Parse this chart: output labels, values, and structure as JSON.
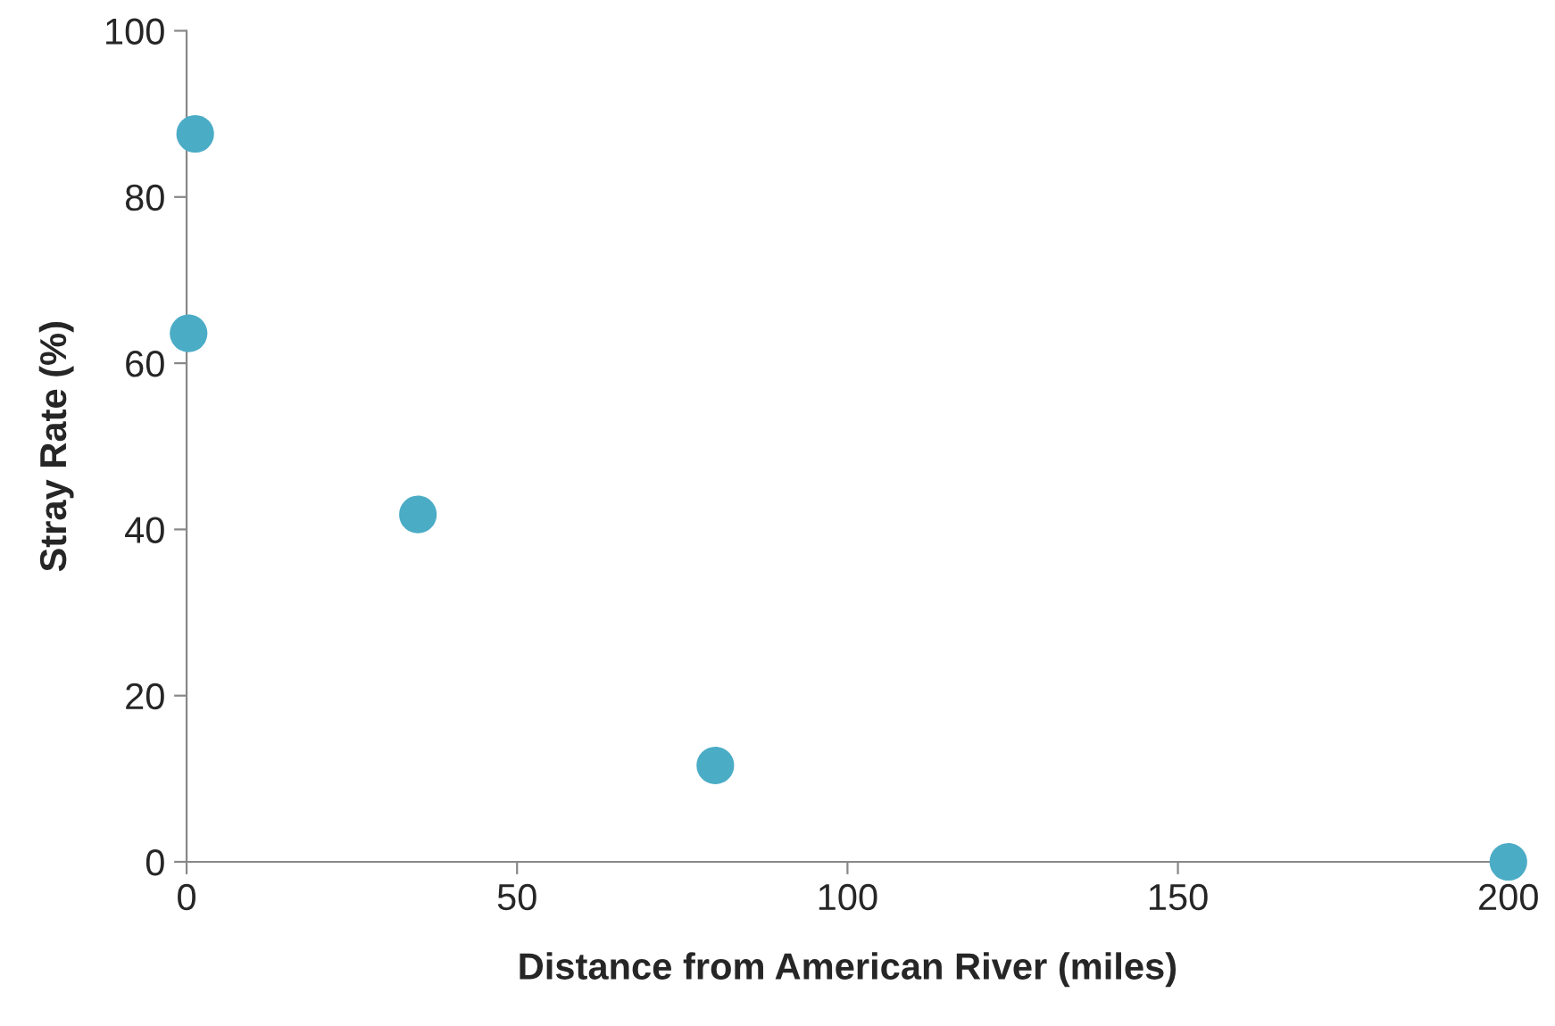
{
  "chart_data": {
    "type": "scatter",
    "xlabel": "Distance from American River (miles)",
    "ylabel": "Stray Rate (%)",
    "x": [
      1.3,
      0.3,
      35,
      80,
      200
    ],
    "series": [
      {
        "color": "#4bacc6",
        "values": [
          87.6,
          63.6,
          41.8,
          11.6,
          0
        ]
      }
    ],
    "xlim": [
      0,
      200
    ],
    "xticks": [
      0,
      50,
      100,
      150,
      200
    ],
    "ylim": [
      0,
      100
    ],
    "yticks": [
      0,
      20,
      40,
      60,
      80,
      100
    ],
    "grid": false,
    "legend": false,
    "marker": "circle"
  }
}
